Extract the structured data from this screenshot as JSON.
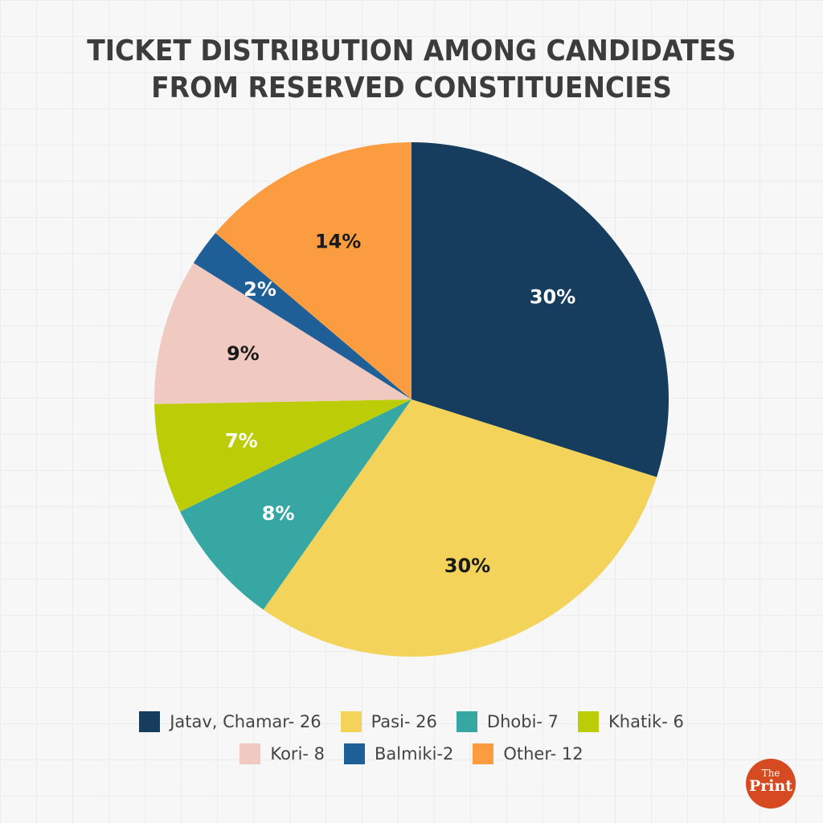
{
  "title": {
    "line1": "TICKET DISTRIBUTION AMONG CANDIDATES",
    "line2": "FROM RESERVED CONSTITUENCIES"
  },
  "chart_data": {
    "type": "pie",
    "title": "TICKET DISTRIBUTION AMONG CANDIDATES FROM RESERVED CONSTITUENCIES",
    "start_angle": "12 o'clock, clockwise",
    "categories": [
      "Jatav, Chamar",
      "Pasi",
      "Dhobi",
      "Khatik",
      "Kori",
      "Balmiki",
      "Other"
    ],
    "values": [
      26,
      26,
      7,
      6,
      8,
      2,
      12
    ],
    "percent_labels": [
      "30%",
      "30%",
      "8%",
      "7%",
      "9%",
      "2%",
      "14%"
    ],
    "colors": [
      "#173d5e",
      "#f3d35a",
      "#37a7a3",
      "#bccd08",
      "#f0c9c1",
      "#1f5f98",
      "#fb9c40"
    ],
    "label_colors": [
      "#ffffff",
      "#1a1a1a",
      "#ffffff",
      "#ffffff",
      "#1a1a1a",
      "#ffffff",
      "#1a1a1a"
    ],
    "legend_position": "bottom"
  },
  "legend": {
    "row1": [
      {
        "label": "Jatav, Chamar- 26",
        "color": "#173d5e"
      },
      {
        "label": "Pasi- 26",
        "color": "#f3d35a"
      },
      {
        "label": "Dhobi- 7",
        "color": "#37a7a3"
      },
      {
        "label": "Khatik- 6",
        "color": "#bccd08"
      }
    ],
    "row2": [
      {
        "label": "Kori- 8",
        "color": "#f0c9c1"
      },
      {
        "label": "Balmiki-2",
        "color": "#1f5f98"
      },
      {
        "label": "Other- 12",
        "color": "#fb9c40"
      }
    ]
  },
  "logo": {
    "line1": "The",
    "line2": "Print",
    "color": "#d64a22"
  }
}
